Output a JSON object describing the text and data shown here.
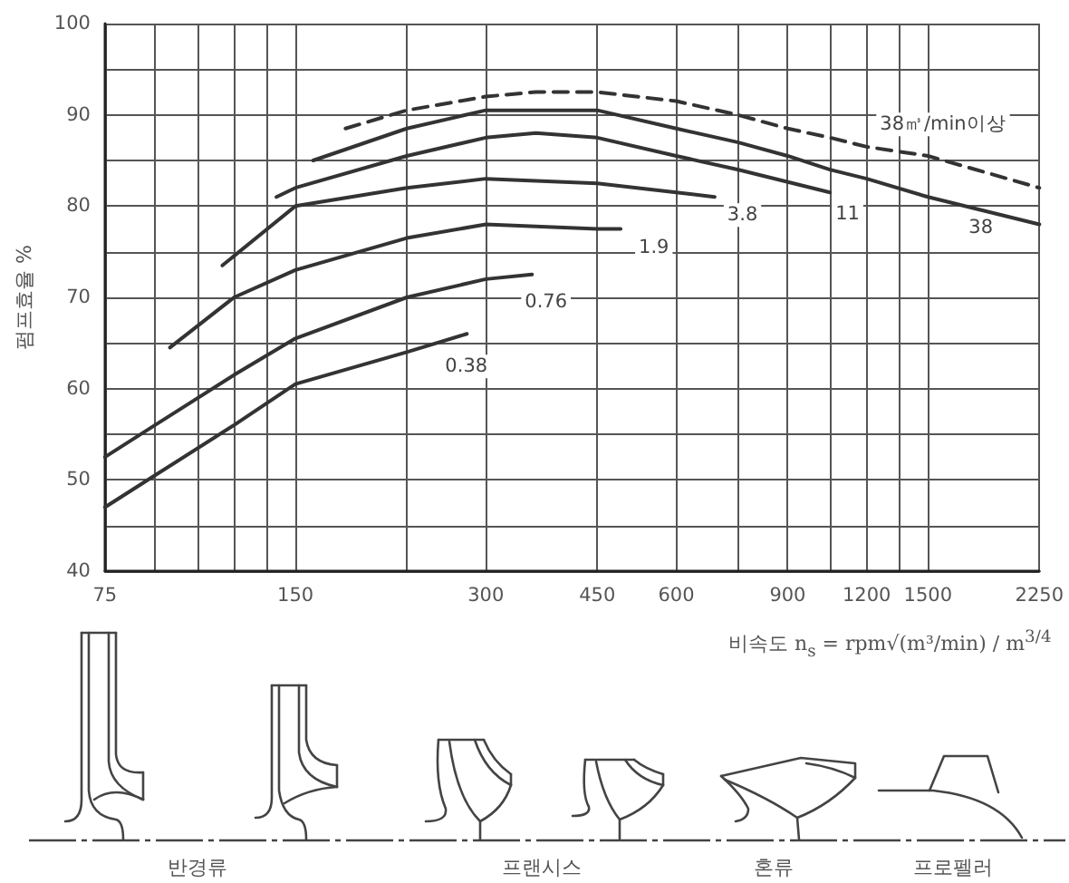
{
  "chart_data": {
    "type": "line",
    "ylabel": "펌프효율 %",
    "xlabel": "비속도  n$_{s}$ = rpm√(m³/min) / m$^{3/4}$",
    "annotations": [
      "반경류",
      "프랜시스",
      "혼류",
      "프로펠러"
    ],
    "log": "x",
    "grid": true,
    "marker": "none",
    "line_style": "solid",
    "xlim": [
      75,
      2250
    ],
    "xticks": [
      75,
      {
        "value": 90,
        "label": null
      },
      {
        "value": 105,
        "label": null
      },
      {
        "value": 120,
        "label": null
      },
      {
        "value": 135,
        "label": null
      },
      150,
      {
        "value": 225,
        "label": null
      },
      300,
      450,
      600,
      {
        "value": 750,
        "label": null
      },
      900,
      {
        "value": 1050,
        "label": null
      },
      1200,
      {
        "value": 1350,
        "label": null
      },
      1500,
      2250
    ],
    "ylim": [
      40,
      100
    ],
    "yticks": [
      40,
      {
        "value": 45,
        "label": null
      },
      50,
      {
        "value": 55,
        "label": null
      },
      60,
      {
        "value": 65,
        "label": null
      },
      70,
      {
        "value": 75,
        "label": null
      },
      80,
      {
        "value": 85,
        "label": null
      },
      90,
      {
        "value": 95,
        "label": null
      },
      100
    ],
    "series": [
      {
        "name": "0.38",
        "color": "#333333",
        "x": [
          75,
          90,
          120,
          150,
          225,
          280
        ],
        "values": [
          47,
          50.5,
          56,
          60.5,
          64,
          66
        ]
      },
      {
        "name": "0.76",
        "color": "#333333",
        "x": [
          75,
          90,
          120,
          150,
          225,
          300,
          355
        ],
        "values": [
          52.5,
          56,
          61.5,
          65.5,
          70,
          72,
          72.5
        ]
      },
      {
        "name": "1.9",
        "color": "#333333",
        "x": [
          95,
          120,
          150,
          225,
          300,
          450,
          490
        ],
        "values": [
          64.5,
          70,
          73,
          76.5,
          78,
          77.5,
          77.5
        ]
      },
      {
        "name": "3.8",
        "color": "#333333",
        "x": [
          115,
          150,
          225,
          300,
          450,
          600,
          690
        ],
        "values": [
          73.5,
          80,
          82,
          83,
          82.5,
          81.5,
          81
        ]
      },
      {
        "name": "11",
        "color": "#333333",
        "x": [
          140,
          150,
          225,
          300,
          360,
          450,
          600,
          750,
          1050
        ],
        "values": [
          81,
          82,
          85.5,
          87.5,
          88,
          87.5,
          85.5,
          84,
          81.5
        ]
      },
      {
        "name": "38",
        "color": "#333333",
        "x": [
          160,
          225,
          300,
          360,
          450,
          600,
          750,
          900,
          1050,
          1200,
          1500,
          2250
        ],
        "values": [
          85,
          88.5,
          90.5,
          90.5,
          90.5,
          88.5,
          87,
          85.5,
          84,
          83,
          81,
          78
        ]
      },
      {
        "name": "38㎥/min이상",
        "color": "#333333",
        "line_style": "dashed",
        "x": [
          180,
          225,
          300,
          360,
          450,
          600,
          750,
          900,
          1050,
          1200,
          1500,
          2250
        ],
        "values": [
          88.5,
          90.5,
          92,
          92.5,
          92.5,
          91.5,
          90,
          88.5,
          87.5,
          86.5,
          85.5,
          82
        ]
      }
    ]
  }
}
